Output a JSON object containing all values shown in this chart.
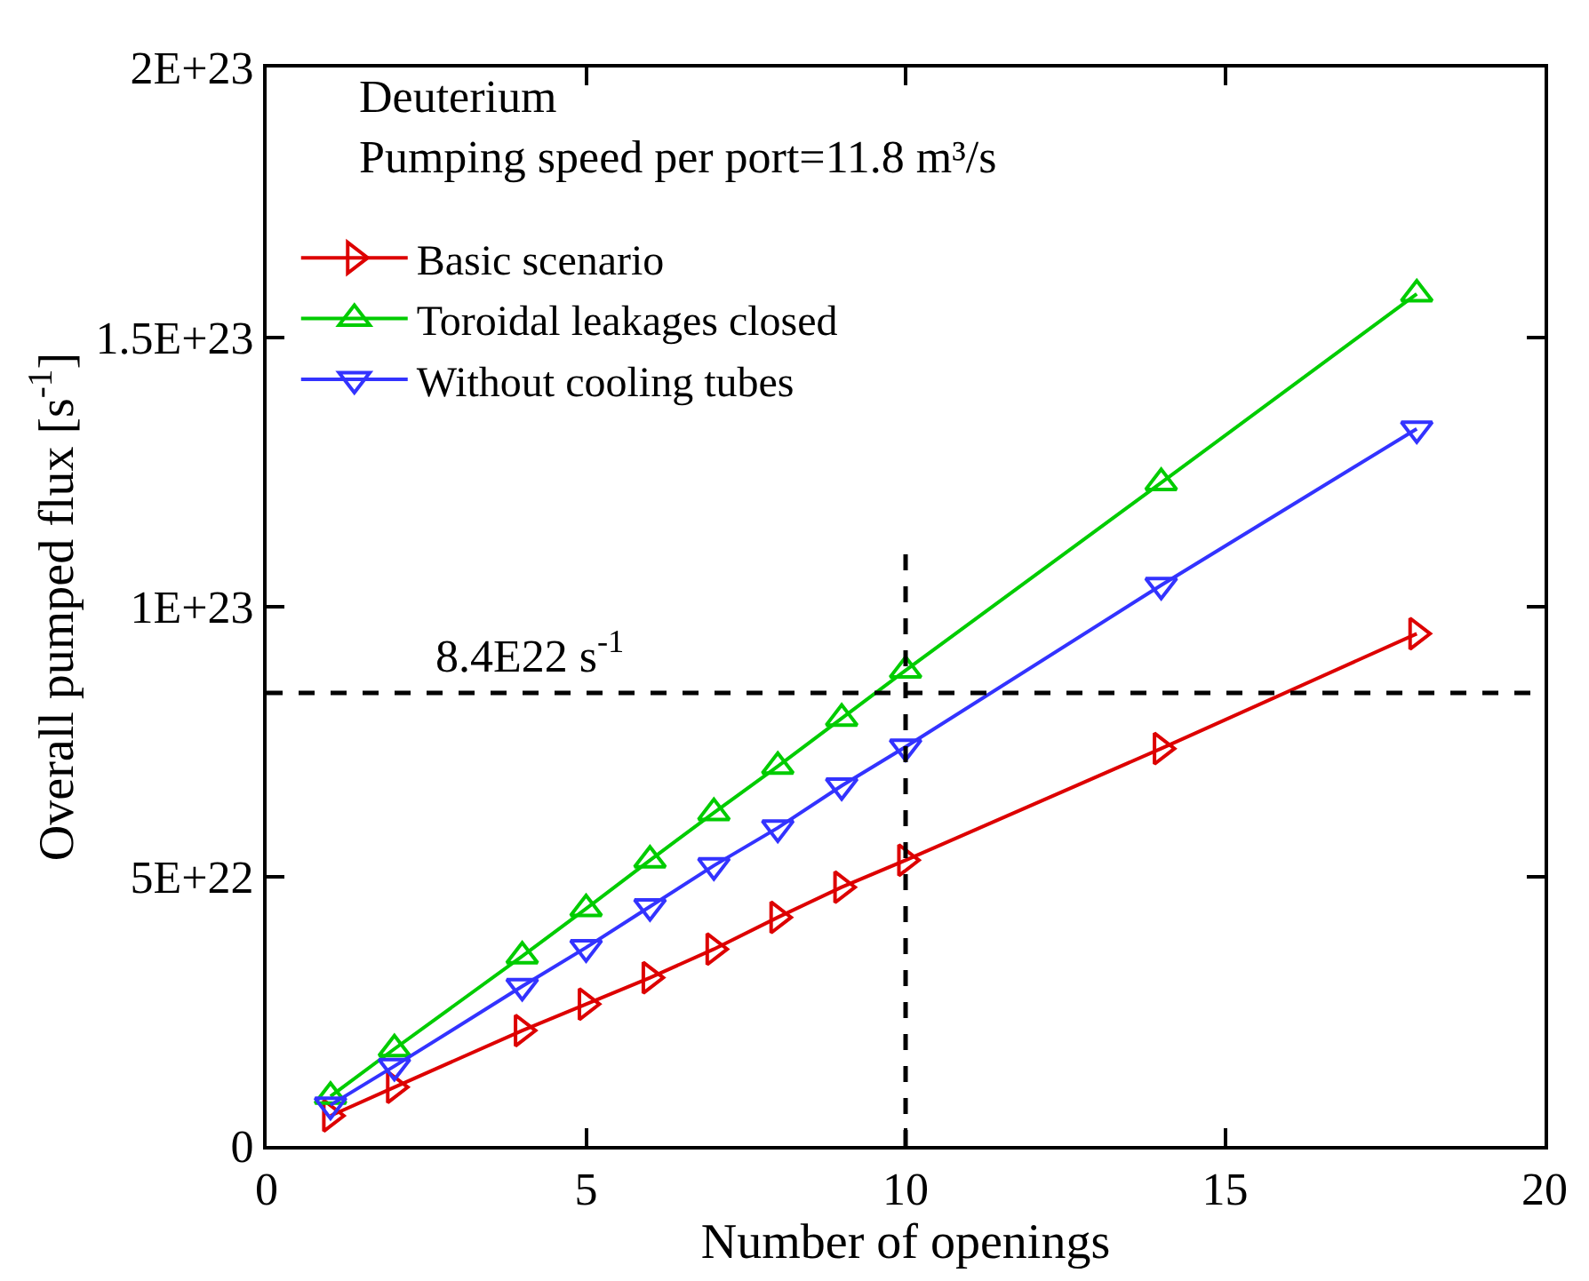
{
  "chart_data": {
    "type": "line",
    "title": "Deuterium",
    "subtitle": "Pumping speed per port=11.8 m³/s",
    "xlabel": "Number of openings",
    "ylabel": "Overall pumped flux [s$^{-1}$]",
    "x": [
      1,
      2,
      4,
      5,
      6,
      7,
      8,
      9,
      10,
      14,
      18
    ],
    "series": [
      {
        "name": "Basic scenario",
        "color": "#dd0000",
        "values": [
          5.6e+21,
          1.09e+22,
          2.14e+22,
          2.63e+22,
          3.12e+22,
          3.65e+22,
          4.24e+22,
          4.8e+22,
          5.3e+22,
          7.37e+22,
          9.5e+22
        ]
      },
      {
        "name": "Toroidal leakages closed",
        "color": "#00cc00",
        "values": [
          9.2e+21,
          1.8e+22,
          3.52e+22,
          4.4e+22,
          5.3e+22,
          6.18e+22,
          7.04e+22,
          7.93e+22,
          8.82e+22,
          1.23e+23,
          1.58e+23
        ]
      },
      {
        "name": "Without cooling tubes",
        "color": "#3333ff",
        "values": [
          7.6e+21,
          1.48e+22,
          2.96e+22,
          3.68e+22,
          4.44e+22,
          5.2e+22,
          5.9e+22,
          6.68e+22,
          7.4e+22,
          1.04e+23,
          1.33e+23
        ]
      }
    ],
    "xlim": [
      0,
      20
    ],
    "xticks": [
      0,
      5,
      10,
      15,
      20
    ],
    "ylim": [
      0,
      2e+23
    ],
    "yticks": [
      0,
      {
        "value": 5e+22,
        "label": "5E+22"
      },
      {
        "value": 1e+23,
        "label": "1E+23"
      },
      {
        "value": 1.5e+23,
        "label": "1.5E+23"
      },
      {
        "value": 2e+23,
        "label": "2E+23"
      }
    ],
    "ref_lines": [
      {
        "axis": "y",
        "value": 8.4e+22,
        "label": "8.4E22 s$^{-1}$",
        "color": "#000000",
        "line_style": "dashed"
      },
      {
        "axis": "x",
        "value": 10,
        "color": "#000000",
        "line_style": "dashed"
      }
    ],
    "grid": false,
    "legend": "top left",
    "marker": "triangle",
    "line_style": "solid"
  }
}
